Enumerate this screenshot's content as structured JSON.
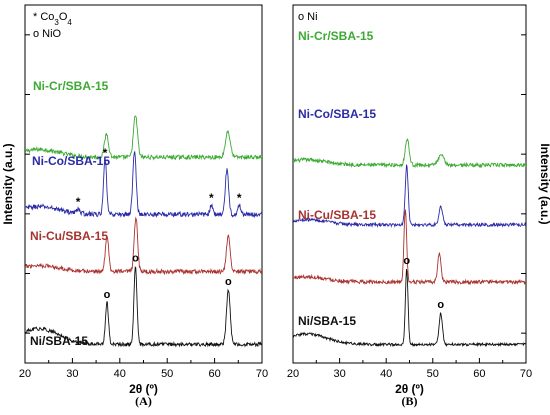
{
  "chart_data": [
    {
      "type": "line",
      "panel_label": "(A)",
      "xlabel": "2θ (º)",
      "ylabel": "Intensity (a.u.)",
      "xlim": [
        20,
        70
      ],
      "x_ticks": [
        "20",
        "30",
        "40",
        "50",
        "60",
        "70"
      ],
      "grid": false,
      "legend": [
        {
          "symbol": "*",
          "text": "Co",
          "sub": "3",
          "text2": "O",
          "sub2": "4"
        },
        {
          "symbol": "o",
          "text": "NiO"
        }
      ],
      "series": [
        {
          "name": "Ni-Cr/SBA-15",
          "color": "#3caa33",
          "offset": 3.6,
          "noise": 0.04,
          "baseline": 0.15,
          "peaks": [
            {
              "x": 37.2,
              "h": 0.45,
              "w": 0.6
            },
            {
              "x": 43.3,
              "h": 0.8,
              "w": 0.6
            },
            {
              "x": 62.8,
              "h": 0.5,
              "w": 0.7
            }
          ]
        },
        {
          "name": "Ni-Co/SBA-15",
          "color": "#2b2ba7",
          "offset": 2.5,
          "noise": 0.045,
          "baseline": 0.15,
          "peaks": [
            {
              "x": 31.2,
              "h": 0.1,
              "w": 0.4
            },
            {
              "x": 36.9,
              "h": 1.05,
              "w": 0.45
            },
            {
              "x": 43.1,
              "h": 1.2,
              "w": 0.5
            },
            {
              "x": 59.3,
              "h": 0.18,
              "w": 0.4
            },
            {
              "x": 62.6,
              "h": 0.85,
              "w": 0.5
            },
            {
              "x": 65.2,
              "h": 0.18,
              "w": 0.4
            }
          ]
        },
        {
          "name": "Ni-Cu/SBA-15",
          "color": "#a8322f",
          "offset": 1.4,
          "noise": 0.04,
          "baseline": 0.12,
          "peaks": [
            {
              "x": 37.3,
              "h": 0.7,
              "w": 0.5
            },
            {
              "x": 43.4,
              "h": 1.05,
              "w": 0.5
            },
            {
              "x": 62.9,
              "h": 0.72,
              "w": 0.55
            }
          ]
        },
        {
          "name": "Ni/SBA-15",
          "color": "#111111",
          "offset": 0.0,
          "noise": 0.035,
          "baseline": 0.3,
          "peaks": [
            {
              "x": 37.3,
              "h": 0.8,
              "w": 0.45
            },
            {
              "x": 43.3,
              "h": 1.5,
              "w": 0.45
            },
            {
              "x": 62.9,
              "h": 1.05,
              "w": 0.55
            }
          ]
        }
      ],
      "annotations": [
        {
          "text": "o",
          "x": 37.3,
          "series": "Ni/SBA-15"
        },
        {
          "text": "o",
          "x": 43.3,
          "series": "Ni/SBA-15"
        },
        {
          "text": "o",
          "x": 62.9,
          "series": "Ni/SBA-15"
        },
        {
          "text": "*",
          "x": 31.2,
          "series": "Ni-Co/SBA-15"
        },
        {
          "text": "*",
          "x": 36.9,
          "series": "Ni-Co/SBA-15"
        },
        {
          "text": "*",
          "x": 59.3,
          "series": "Ni-Co/SBA-15"
        },
        {
          "text": "*",
          "x": 65.2,
          "series": "Ni-Co/SBA-15"
        }
      ]
    },
    {
      "type": "line",
      "panel_label": "(B)",
      "xlabel": "2θ (º)",
      "ylabel": "Intensity (a.u.)",
      "xlim": [
        20,
        70
      ],
      "x_ticks": [
        "20",
        "30",
        "40",
        "50",
        "60",
        "70"
      ],
      "grid": false,
      "legend": [
        {
          "symbol": "o",
          "text": "Ni"
        }
      ],
      "series": [
        {
          "name": "Ni-Cr/SBA-15",
          "color": "#3caa33",
          "offset": 3.45,
          "noise": 0.035,
          "baseline": 0.1,
          "peaks": [
            {
              "x": 44.5,
              "h": 0.5,
              "w": 0.6
            },
            {
              "x": 51.8,
              "h": 0.18,
              "w": 0.9
            }
          ]
        },
        {
          "name": "Ni-Co/SBA-15",
          "color": "#2b2ba7",
          "offset": 2.3,
          "noise": 0.03,
          "baseline": 0.1,
          "peaks": [
            {
              "x": 44.4,
              "h": 1.15,
              "w": 0.45
            },
            {
              "x": 51.7,
              "h": 0.35,
              "w": 0.55
            }
          ]
        },
        {
          "name": "Ni-Cu/SBA-15",
          "color": "#a8322f",
          "offset": 1.2,
          "noise": 0.035,
          "baseline": 0.1,
          "peaks": [
            {
              "x": 44.1,
              "h": 1.4,
              "w": 0.4
            },
            {
              "x": 51.4,
              "h": 0.55,
              "w": 0.5
            }
          ]
        },
        {
          "name": "Ni/SBA-15",
          "color": "#111111",
          "offset": 0.0,
          "noise": 0.025,
          "baseline": 0.2,
          "peaks": [
            {
              "x": 44.4,
              "h": 1.45,
              "w": 0.4
            },
            {
              "x": 51.7,
              "h": 0.6,
              "w": 0.5
            }
          ]
        }
      ],
      "annotations": [
        {
          "text": "o",
          "x": 44.4,
          "series": "Ni/SBA-15"
        },
        {
          "text": "o",
          "x": 51.7,
          "series": "Ni/SBA-15"
        }
      ]
    }
  ]
}
